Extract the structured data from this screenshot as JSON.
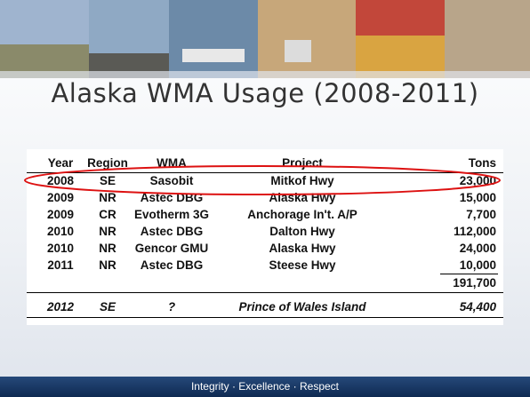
{
  "title": "Alaska WMA Usage (2008-2011)",
  "table": {
    "columns": [
      "Year",
      "Region",
      "WMA",
      "Project",
      "Tons"
    ],
    "rows": [
      [
        "2008",
        "SE",
        "Sasobit",
        "Mitkof Hwy",
        "23,000"
      ],
      [
        "2009",
        "NR",
        "Astec DBG",
        "Alaska  Hwy",
        "15,000"
      ],
      [
        "2009",
        "CR",
        "Evotherm 3G",
        "Anchorage In't. A/P",
        "7,700"
      ],
      [
        "2010",
        "NR",
        "Astec DBG",
        "Dalton Hwy",
        "112,000"
      ],
      [
        "2010",
        "NR",
        "Gencor GMU",
        "Alaska Hwy",
        "24,000"
      ],
      [
        "2011",
        "NR",
        "Astec DBG",
        "Steese Hwy",
        "10,000"
      ]
    ],
    "total": "191,700",
    "projected": [
      "2012",
      "SE",
      "?",
      "Prince of Wales Island",
      "54,400"
    ]
  },
  "footer": "Integrity · Excellence · Respect"
}
